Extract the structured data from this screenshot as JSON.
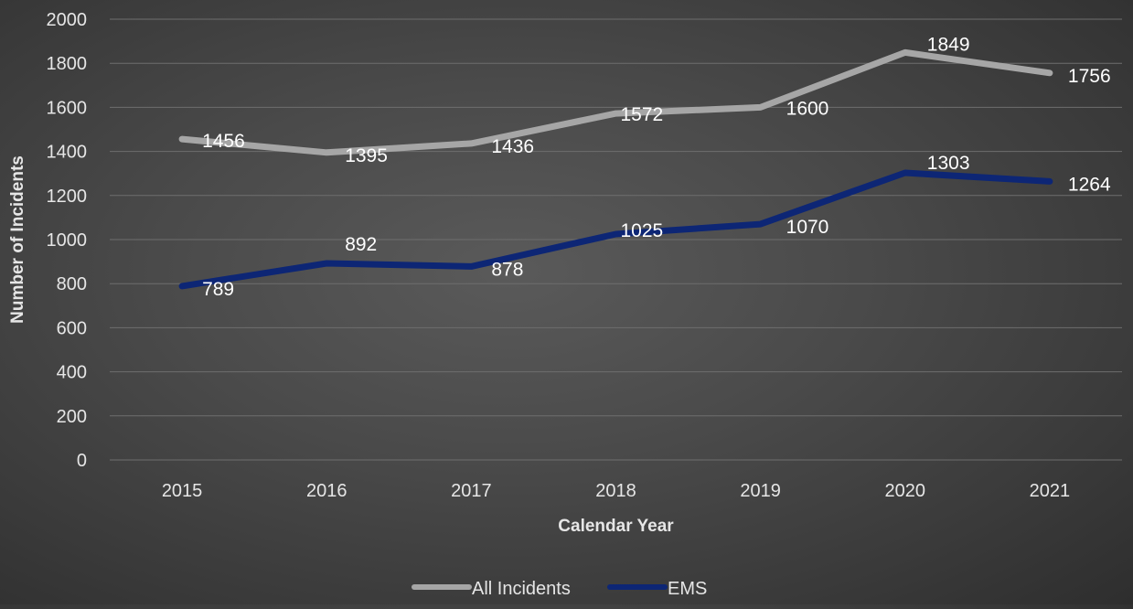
{
  "chart_data": {
    "type": "line",
    "categories": [
      "2015",
      "2016",
      "2017",
      "2018",
      "2019",
      "2020",
      "2021"
    ],
    "series": [
      {
        "name": "All Incidents",
        "values": [
          1456,
          1395,
          1436,
          1572,
          1600,
          1849,
          1756
        ],
        "color": "#a6a6a6"
      },
      {
        "name": "EMS",
        "values": [
          789,
          892,
          878,
          1025,
          1070,
          1303,
          1264
        ],
        "color": "#0d2675"
      }
    ],
    "xlabel": "Calendar Year",
    "ylabel": "Number of Incidents",
    "ylim": [
      0,
      2000
    ],
    "yticks": [
      0,
      200,
      400,
      600,
      800,
      1000,
      1200,
      1400,
      1600,
      1800,
      2000
    ],
    "grid": true,
    "legend_position": "bottom",
    "data_labels": true,
    "colors": {
      "background": "#474747",
      "gridline": "#6e6e6e",
      "text": "#e6e6e6",
      "label_all_incidents": "#ffffff",
      "label_ems": "#ffffff"
    }
  }
}
